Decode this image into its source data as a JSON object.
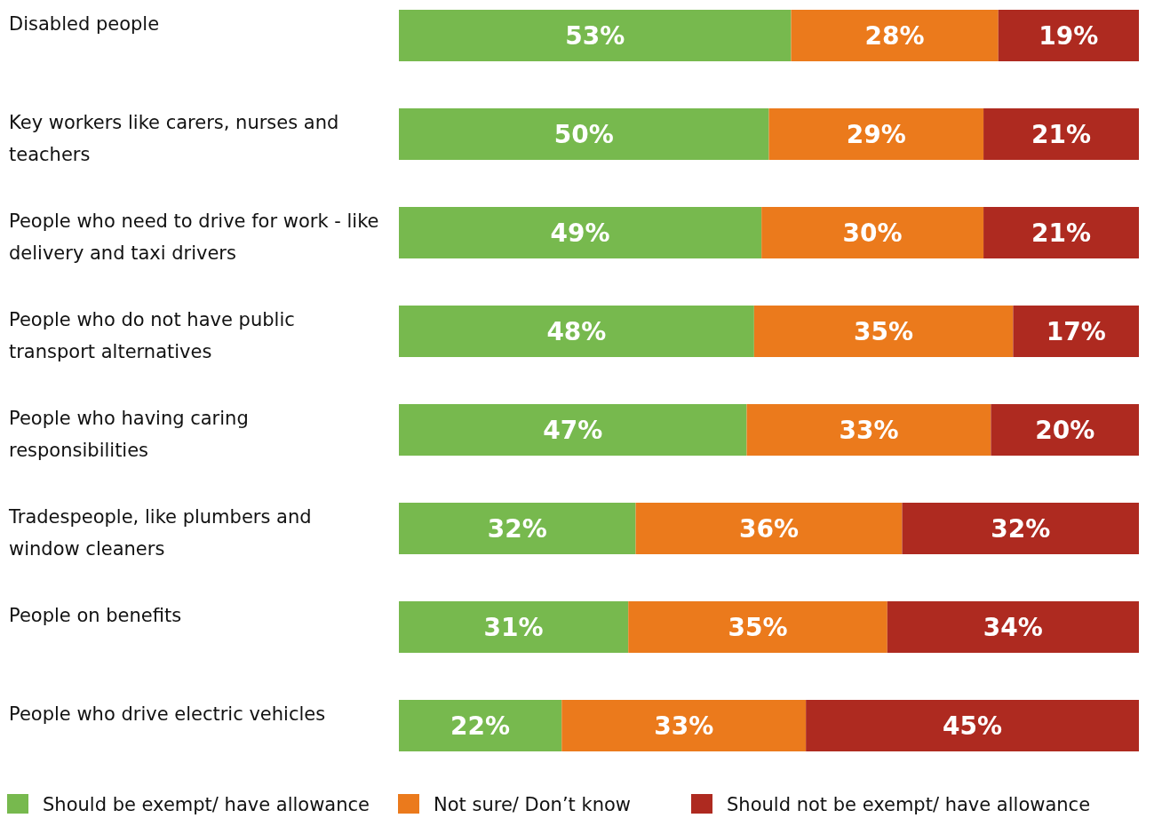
{
  "chart_data": {
    "type": "bar",
    "orientation": "horizontal",
    "stacked": true,
    "legend": "bottom",
    "categories": [
      "Disabled people",
      "Key workers like carers, nurses and teachers",
      "People who need to drive for work - like delivery and taxi drivers",
      "People who do not have public transport alternatives",
      "People who having caring responsibilities",
      "Tradespeople, like plumbers and window cleaners",
      "People on benefits",
      "People who drive electric vehicles"
    ],
    "series": [
      {
        "name": "Should be exempt/ have allowance",
        "color": "#77b94e",
        "values": [
          53,
          50,
          49,
          48,
          47,
          32,
          31,
          22
        ],
        "value_labels": [
          "53%",
          "50%",
          "49%",
          "48%",
          "47%",
          "32%",
          "31%",
          "22%"
        ]
      },
      {
        "name": "Not sure/ Don’t know",
        "color": "#eb7a1c",
        "values": [
          28,
          29,
          30,
          35,
          33,
          36,
          35,
          33
        ],
        "value_labels": [
          "28%",
          "29%",
          "30%",
          "35%",
          "33%",
          "36%",
          "35%",
          "33%"
        ]
      },
      {
        "name": "Should not be exempt/ have allowance",
        "color": "#ae2a20",
        "values": [
          19,
          21,
          21,
          17,
          20,
          32,
          34,
          45
        ],
        "value_labels": [
          "19%",
          "21%",
          "21%",
          "17%",
          "20%",
          "32%",
          "34%",
          "45%"
        ]
      }
    ]
  }
}
